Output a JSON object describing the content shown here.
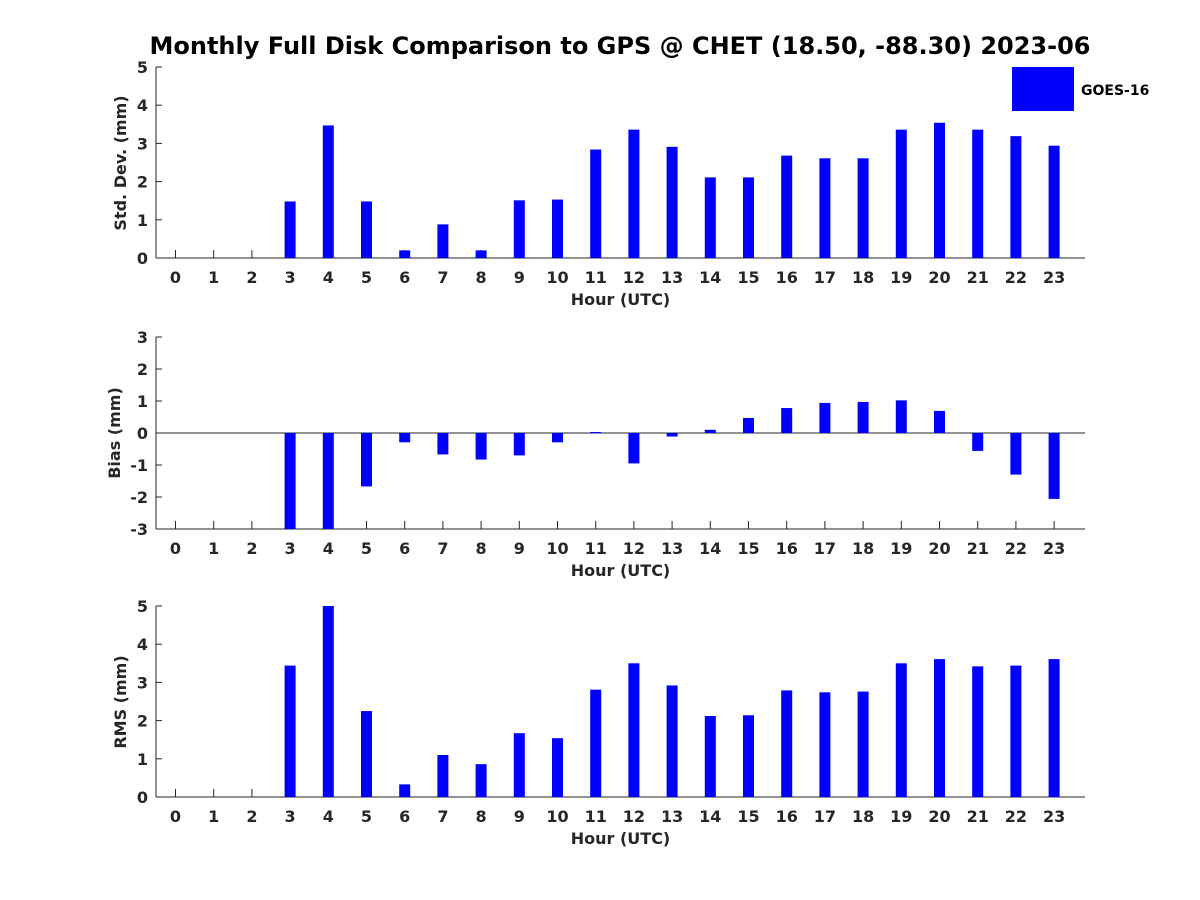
{
  "title": "Monthly Full Disk Comparison to GPS @ CHET (18.50, -88.30) 2023-06",
  "legend": {
    "label": "GOES-16",
    "color": "#0000ff",
    "placement": "top-right"
  },
  "chart_data": [
    {
      "type": "bar",
      "name": "Std. Dev.",
      "xlabel": "Hour (UTC)",
      "ylabel": "Std. Dev. (mm)",
      "ylim": [
        0,
        5
      ],
      "yticks": [
        "0",
        "1",
        "2",
        "3",
        "4",
        "5"
      ],
      "categories": [
        "0",
        "1",
        "2",
        "3",
        "4",
        "5",
        "6",
        "7",
        "8",
        "9",
        "10",
        "11",
        "12",
        "13",
        "14",
        "15",
        "16",
        "17",
        "18",
        "19",
        "20",
        "21",
        "22",
        "23"
      ],
      "series": [
        {
          "name": "GOES-16",
          "values": [
            null,
            null,
            null,
            1.48,
            3.47,
            1.48,
            0.2,
            0.88,
            0.2,
            1.51,
            1.53,
            2.84,
            3.36,
            2.91,
            2.11,
            2.11,
            2.68,
            2.61,
            2.61,
            3.36,
            3.54,
            3.36,
            3.19,
            2.94
          ]
        }
      ],
      "grid": false
    },
    {
      "type": "bar",
      "name": "Bias",
      "xlabel": "Hour (UTC)",
      "ylabel": "Bias (mm)",
      "ylim": [
        -3,
        3
      ],
      "yticks": [
        "-3",
        "-2",
        "-1",
        "0",
        "1",
        "2",
        "3"
      ],
      "categories": [
        "0",
        "1",
        "2",
        "3",
        "4",
        "5",
        "6",
        "7",
        "8",
        "9",
        "10",
        "11",
        "12",
        "13",
        "14",
        "15",
        "16",
        "17",
        "18",
        "19",
        "20",
        "21",
        "22",
        "23"
      ],
      "series": [
        {
          "name": "GOES-16",
          "values": [
            null,
            null,
            null,
            -3.0,
            -3.0,
            -1.67,
            -0.29,
            -0.67,
            -0.83,
            -0.7,
            -0.29,
            0.03,
            -0.95,
            -0.11,
            0.1,
            0.47,
            0.78,
            0.94,
            0.97,
            1.02,
            0.69,
            -0.56,
            -1.3,
            -2.06
          ]
        }
      ],
      "grid": false
    },
    {
      "type": "bar",
      "name": "RMS",
      "xlabel": "Hour (UTC)",
      "ylabel": "RMS (mm)",
      "ylim": [
        0,
        5
      ],
      "yticks": [
        "0",
        "1",
        "2",
        "3",
        "4",
        "5"
      ],
      "categories": [
        "0",
        "1",
        "2",
        "3",
        "4",
        "5",
        "6",
        "7",
        "8",
        "9",
        "10",
        "11",
        "12",
        "13",
        "14",
        "15",
        "16",
        "17",
        "18",
        "19",
        "20",
        "21",
        "22",
        "23"
      ],
      "series": [
        {
          "name": "GOES-16",
          "values": [
            null,
            null,
            null,
            3.44,
            5.0,
            2.25,
            0.33,
            1.1,
            0.86,
            1.67,
            1.54,
            2.81,
            3.5,
            2.92,
            2.12,
            2.14,
            2.79,
            2.74,
            2.76,
            3.5,
            3.61,
            3.42,
            3.44,
            3.61
          ]
        }
      ],
      "grid": false
    }
  ]
}
